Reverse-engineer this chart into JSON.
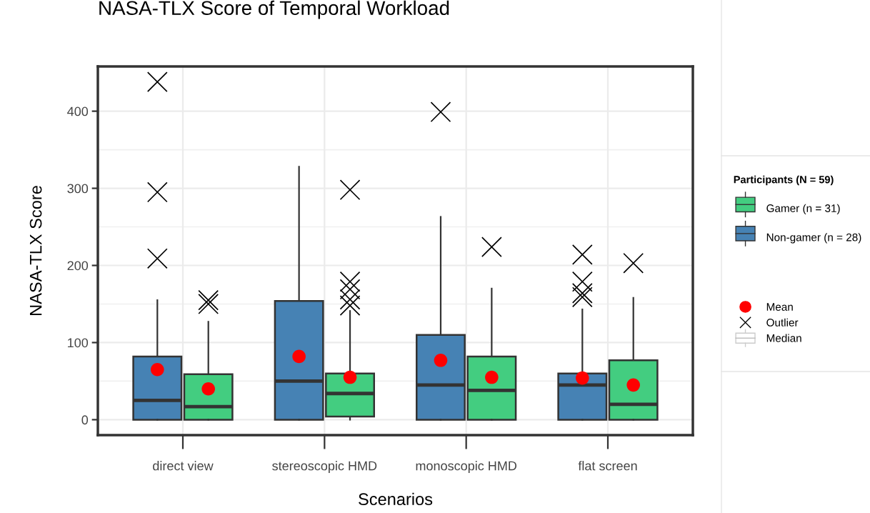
{
  "chart_data": {
    "type": "box",
    "title": "NASA-TLX Score of Temporal Workload",
    "xlabel": "Scenarios",
    "ylabel": "NASA-TLX Score",
    "legend_title": "Participants (N = 59)",
    "categories": [
      "direct view",
      "stereoscopic HMD",
      "monoscopic HMD",
      "flat screen"
    ],
    "series": [
      {
        "name": "Non-gamer (n = 28)",
        "color": "#4682b4",
        "boxes": [
          {
            "low": 0,
            "q1": 0,
            "median": 25,
            "q3": 82,
            "high": 155,
            "mean": 65,
            "outliers": [
              438,
              295,
              209
            ]
          },
          {
            "low": 0,
            "q1": 0,
            "median": 50,
            "q3": 154,
            "high": 328,
            "mean": 82
          },
          {
            "low": 0,
            "q1": 0,
            "median": 45,
            "q3": 110,
            "high": 263,
            "mean": 77,
            "outliers": [
              399
            ]
          },
          {
            "low": 0,
            "q1": 0,
            "median": 45,
            "q3": 60,
            "high": 143,
            "mean": 54,
            "outliers": [
              214,
              179,
              164,
              159
            ]
          }
        ]
      },
      {
        "name": "Gamer (n = 31)",
        "color": "#43cd80",
        "boxes": [
          {
            "low": 0,
            "q1": 0,
            "median": 17,
            "q3": 59,
            "high": 127,
            "mean": 40,
            "outliers": [
              150,
              155
            ]
          },
          {
            "low": 0,
            "q1": 4,
            "median": 34,
            "q3": 60,
            "high": 141,
            "mean": 55,
            "outliers": [
              298,
              179,
              169,
              156,
              148
            ]
          },
          {
            "low": 0,
            "q1": 0,
            "median": 38,
            "q3": 82,
            "high": 170,
            "mean": 55,
            "outliers": [
              224
            ]
          },
          {
            "low": 0,
            "q1": 0,
            "median": 20,
            "q3": 77,
            "high": 158,
            "mean": 45,
            "outliers": [
              203
            ]
          }
        ]
      }
    ],
    "annotations": [
      "Mean",
      "Outlier",
      "Median"
    ],
    "ylim": [
      -20,
      458
    ],
    "yticks": [
      0,
      100,
      200,
      300,
      400
    ],
    "grid": true,
    "legend": "right"
  }
}
